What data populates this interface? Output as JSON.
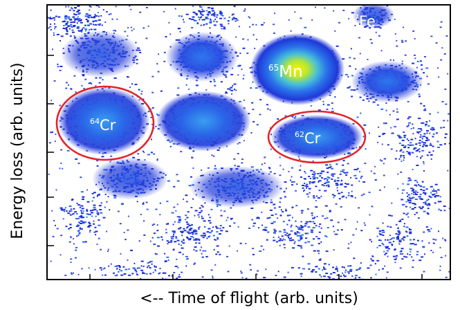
{
  "chart_data": {
    "type": "heatmap",
    "title": "",
    "xlabel": "<-- Time of flight (arb. units)",
    "ylabel": "Energy loss (arb. units)",
    "x_tick_labels": false,
    "y_tick_labels": false,
    "grid": false,
    "colormap": [
      "#ffffff",
      "#1c2fd8",
      "#2c6cf0",
      "#3fb8e8",
      "#8fd860",
      "#f2f200"
    ],
    "isotopes": [
      {
        "mass": "67",
        "element": "Fe",
        "highlighted": false
      },
      {
        "mass": "65",
        "element": "Mn",
        "highlighted": false
      },
      {
        "mass": "64",
        "element": "Cr",
        "highlighted": true
      },
      {
        "mass": "62",
        "element": "Cr",
        "highlighted": true
      }
    ],
    "highlight_color": "#e0252a"
  }
}
